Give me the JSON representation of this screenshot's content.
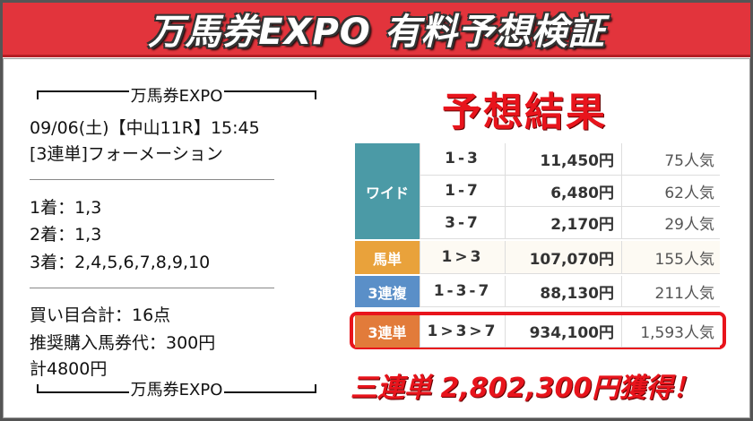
{
  "header": {
    "title": "万馬券EXPO 有料予想検証"
  },
  "ticket": {
    "top_label": "万馬券EXPO",
    "lines": [
      "09/06(土)【中山11R】15:45",
      "[3連単]フォーメーション"
    ],
    "picks": [
      "1着：1,3",
      "2着：1,3",
      "3着：2,4,5,6,7,8,9,10"
    ],
    "totals": [
      "買い目合計：16点",
      "推奨購入馬券代：300円",
      "計4800円"
    ],
    "bottom_label": "万馬券EXPO"
  },
  "result": {
    "title": "予想結果",
    "groups": [
      {
        "type": "ワイド",
        "color": "#4b9aa6",
        "rows": [
          [
            "1-3",
            "11,450円",
            "75人気"
          ],
          [
            "1-7",
            "6,480円",
            "62人気"
          ],
          [
            "3-7",
            "2,170円",
            "29人気"
          ]
        ]
      },
      {
        "type": "馬単",
        "color": "#e9a23b",
        "rows": [
          [
            "1>3",
            "107,070円",
            "155人気"
          ]
        ]
      },
      {
        "type": "3連複",
        "color": "#5a8fc8",
        "rows": [
          [
            "1-3-7",
            "88,130円",
            "211人気"
          ]
        ]
      },
      {
        "type": "3連単",
        "color": "#e27b3a",
        "rows": [
          [
            "1>3>7",
            "934,100円",
            "1,593人気"
          ]
        ]
      }
    ],
    "summary": "三連単 2,802,300円獲得！"
  }
}
